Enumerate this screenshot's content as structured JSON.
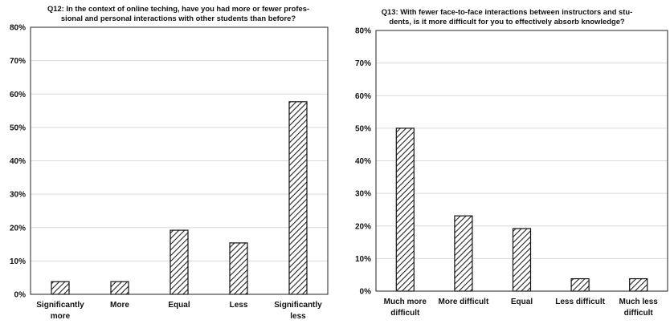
{
  "chart_data": [
    {
      "type": "bar",
      "title_lines": [
        "Q12: In the context of online teching, have you had more or fewer profes-",
        "sional and personal interactions with other students than before?"
      ],
      "categories": [
        [
          "Significantly",
          "more"
        ],
        [
          "More"
        ],
        [
          "Equal"
        ],
        [
          "Less"
        ],
        [
          "Significantly",
          "less"
        ]
      ],
      "values": [
        3.8,
        3.8,
        19.2,
        15.4,
        57.7
      ],
      "ylim": [
        0,
        80
      ],
      "yticks": [
        "0%",
        "10%",
        "20%",
        "30%",
        "40%",
        "50%",
        "60%",
        "70%",
        "80%"
      ],
      "grid": true,
      "bar_pattern": "diagonal-hatch"
    },
    {
      "type": "bar",
      "title_lines": [
        "Q13: With fewer face-to-face interactions between instructors and stu-",
        "dents, is it more difficult for you to effectively absorb knowledge?"
      ],
      "categories": [
        [
          "Much more",
          "difficult"
        ],
        [
          "More difficult"
        ],
        [
          "Equal"
        ],
        [
          "Less difficult"
        ],
        [
          "Much less",
          "difficult"
        ]
      ],
      "values": [
        50.0,
        23.1,
        19.2,
        3.8,
        3.8
      ],
      "ylim": [
        0,
        80
      ],
      "yticks": [
        "0%",
        "10%",
        "20%",
        "30%",
        "40%",
        "50%",
        "60%",
        "70%",
        "80%"
      ],
      "grid": true,
      "bar_pattern": "diagonal-hatch"
    }
  ]
}
